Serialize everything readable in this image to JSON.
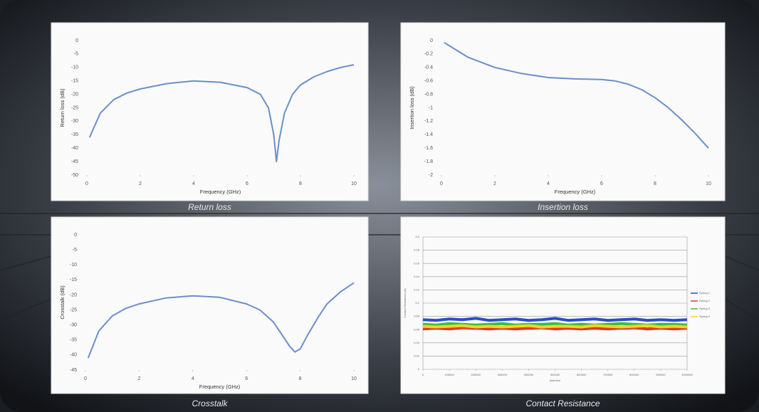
{
  "chart_data": [
    {
      "type": "line",
      "title": "Return loss",
      "xlabel": "Frequency  (GHz)",
      "ylabel": "Return loss (dB)",
      "x": [
        0.1,
        0.5,
        1,
        1.5,
        2,
        3,
        4,
        5,
        6,
        6.5,
        6.8,
        7,
        7.1,
        7.2,
        7.4,
        7.7,
        8,
        8.5,
        9,
        9.5,
        10
      ],
      "values": [
        -36,
        -27,
        -22,
        -19.5,
        -18,
        -16,
        -15,
        -15.5,
        -17.5,
        -20,
        -25,
        -35,
        -45,
        -37,
        -27,
        -20,
        -16.5,
        -13.5,
        -11.5,
        -10,
        -9
      ],
      "color": "#6b8fc9",
      "xlim": [
        0,
        10
      ],
      "xticks": [
        0,
        2,
        4,
        6,
        8,
        10
      ],
      "ylim": [
        -50,
        0
      ],
      "yticks": [
        0,
        -5,
        -10,
        -15,
        -20,
        -25,
        -30,
        -35,
        -40,
        -45,
        -50
      ],
      "grid": false
    },
    {
      "type": "line",
      "title": "Insertion loss",
      "xlabel": "Frequency  (GHz)",
      "ylabel": "Insertion loss (dB)",
      "x": [
        0.1,
        1,
        2,
        3,
        4,
        5,
        6,
        6.5,
        7,
        7.5,
        8,
        8.5,
        9,
        9.5,
        10
      ],
      "values": [
        -0.03,
        -0.25,
        -0.4,
        -0.49,
        -0.55,
        -0.57,
        -0.58,
        -0.6,
        -0.65,
        -0.73,
        -0.85,
        -1,
        -1.18,
        -1.38,
        -1.6
      ],
      "color": "#6b8fc9",
      "xlim": [
        0,
        10
      ],
      "xticks": [
        0,
        2,
        4,
        6,
        8,
        10
      ],
      "ylim": [
        -2,
        0
      ],
      "yticks": [
        0,
        -0.2,
        -0.4,
        -0.6,
        -0.8,
        -1,
        -1.2,
        -1.4,
        -1.6,
        -1.8,
        -2
      ],
      "grid": false
    },
    {
      "type": "line",
      "title": "Crosstalk",
      "xlabel": "Frequency  (GHz)",
      "ylabel": "Crosstalk (dB)",
      "x": [
        0.1,
        0.5,
        1,
        1.5,
        2,
        3,
        4,
        5,
        6,
        6.5,
        7,
        7.3,
        7.6,
        7.8,
        8,
        8.3,
        8.7,
        9,
        9.5,
        10
      ],
      "values": [
        -41,
        -32,
        -27,
        -24.5,
        -23,
        -21,
        -20.3,
        -20.8,
        -23,
        -25,
        -29,
        -33,
        -37,
        -39,
        -38,
        -33,
        -27,
        -23,
        -19,
        -16
      ],
      "color": "#6b8fc9",
      "xlim": [
        0,
        10
      ],
      "xticks": [
        0,
        2,
        4,
        6,
        8,
        10
      ],
      "ylim": [
        -45,
        0
      ],
      "yticks": [
        0,
        -5,
        -10,
        -15,
        -20,
        -25,
        -30,
        -35,
        -40,
        -45
      ],
      "grid": false
    },
    {
      "type": "line",
      "title": "Contact Resistance",
      "xlabel": "Insertion",
      "ylabel": "Contact Resistance (Ω)",
      "x": [
        0,
        50000,
        100000,
        150000,
        200000,
        250000,
        300000,
        350000,
        400000,
        450000,
        500000,
        550000,
        600000,
        650000,
        700000,
        750000,
        800000,
        850000,
        900000,
        950000,
        1000000
      ],
      "series": [
        {
          "name": "Spring 1",
          "color": "#2a4fc4",
          "values": [
            0.075,
            0.074,
            0.076,
            0.075,
            0.077,
            0.074,
            0.075,
            0.076,
            0.074,
            0.075,
            0.077,
            0.074,
            0.075,
            0.076,
            0.074,
            0.075,
            0.076,
            0.074,
            0.075,
            0.074,
            0.075
          ]
        },
        {
          "name": "Spring 2",
          "color": "#e03a2a",
          "values": [
            0.061,
            0.062,
            0.061,
            0.063,
            0.062,
            0.061,
            0.062,
            0.061,
            0.062,
            0.063,
            0.061,
            0.062,
            0.061,
            0.062,
            0.061,
            0.062,
            0.063,
            0.061,
            0.062,
            0.061,
            0.062
          ]
        },
        {
          "name": "Spring 3",
          "color": "#3cbf3c",
          "values": [
            0.068,
            0.067,
            0.069,
            0.068,
            0.067,
            0.068,
            0.069,
            0.067,
            0.068,
            0.068,
            0.069,
            0.067,
            0.068,
            0.067,
            0.068,
            0.069,
            0.068,
            0.067,
            0.068,
            0.068,
            0.067
          ]
        },
        {
          "name": "Spring 4",
          "color": "#f2d32a",
          "values": [
            0.065,
            0.064,
            0.065,
            0.066,
            0.064,
            0.065,
            0.064,
            0.065,
            0.066,
            0.064,
            0.065,
            0.065,
            0.064,
            0.066,
            0.065,
            0.064,
            0.065,
            0.066,
            0.064,
            0.065,
            0.064
          ]
        }
      ],
      "xlim": [
        0,
        1000000
      ],
      "xticks": [
        0,
        100000,
        200000,
        300000,
        400000,
        500000,
        600000,
        700000,
        800000,
        900000,
        1000000
      ],
      "ylim": [
        0,
        0.2
      ],
      "yticks": [
        {
          "value": 0,
          "label": "0"
        },
        {
          "value": 0.02,
          "label": "0,02"
        },
        {
          "value": 0.04,
          "label": "0,04"
        },
        {
          "value": 0.06,
          "label": "0,06"
        },
        {
          "value": 0.08,
          "label": "0,08"
        },
        {
          "value": 0.1,
          "label": "0,1"
        },
        {
          "value": 0.12,
          "label": "0,12"
        },
        {
          "value": 0.14,
          "label": "0,14"
        },
        {
          "value": 0.16,
          "label": "0,16"
        },
        {
          "value": 0.18,
          "label": "0,18"
        },
        {
          "value": 0.2,
          "label": "0,2"
        }
      ],
      "grid": true,
      "legend": "right"
    }
  ]
}
